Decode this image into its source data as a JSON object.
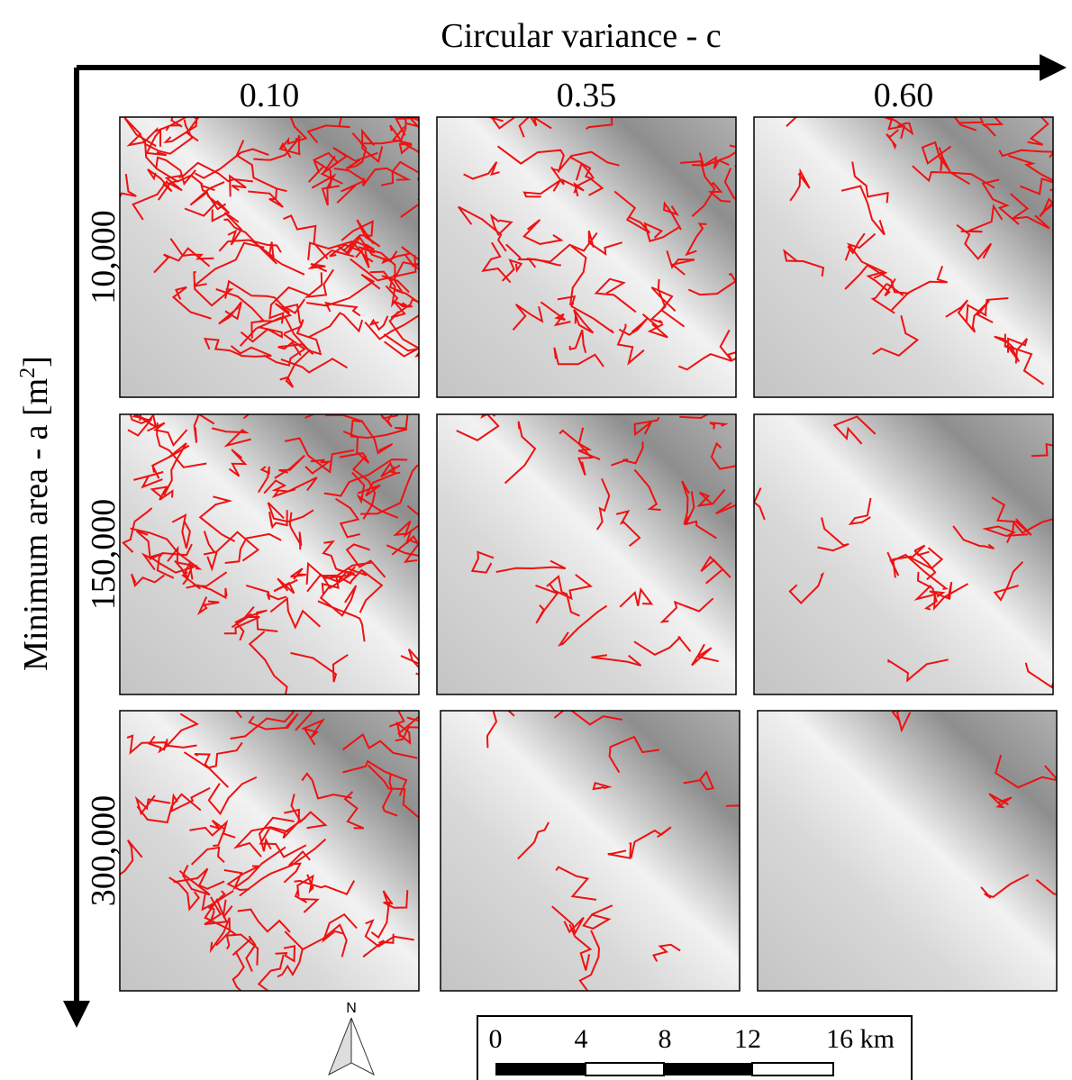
{
  "x_axis": {
    "title": "Circular variance - c",
    "columns": [
      "0.10",
      "0.35",
      "0.60"
    ]
  },
  "y_axis": {
    "title_prefix": "Minimum area - a [m",
    "title_sup": "2",
    "title_suffix": "]",
    "rows": [
      "10,000",
      "150,000",
      "300,000"
    ]
  },
  "north_arrow": {
    "label": "N"
  },
  "scale_bar": {
    "labels": [
      "0",
      "4",
      "8",
      "12",
      "16 km"
    ]
  }
}
